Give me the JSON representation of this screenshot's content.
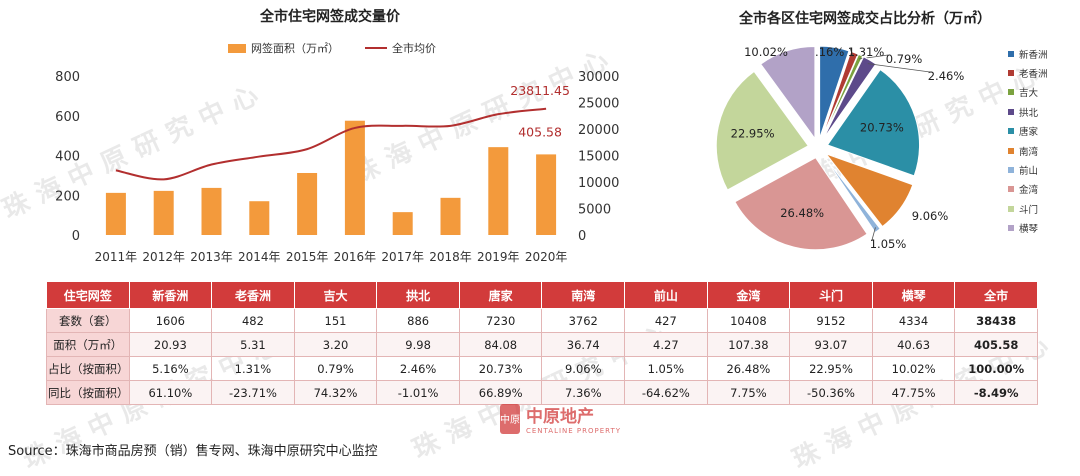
{
  "watermark": "珠海中原研究中心",
  "chart_data": [
    {
      "type": "bar",
      "title": "全市住宅网签成交量价",
      "categories": [
        "2011年",
        "2012年",
        "2013年",
        "2014年",
        "2015年",
        "2016年",
        "2017年",
        "2018年",
        "2019年",
        "2020年"
      ],
      "series": [
        {
          "name": "网签面积（万㎡）",
          "type": "bar",
          "axis": "left",
          "color": "#f39a3c",
          "values": [
            212,
            222,
            237,
            170,
            312,
            575,
            115,
            187,
            442,
            405.58
          ]
        },
        {
          "name": "全市均价",
          "type": "line",
          "axis": "right",
          "color": "#b22f2f",
          "values": [
            12200,
            10500,
            13300,
            14800,
            16200,
            20200,
            20600,
            20600,
            22800,
            23811.45
          ]
        }
      ],
      "y_left": {
        "min": 0,
        "max": 800,
        "ticks": [
          "0",
          "200",
          "400",
          "600",
          "800"
        ]
      },
      "y_right": {
        "min": 0,
        "max": 30000,
        "ticks": [
          "0",
          "5000",
          "10000",
          "15000",
          "20000",
          "25000",
          "30000"
        ]
      },
      "annotations": [
        {
          "series": "全市均价",
          "index": 9,
          "text": "23811.45"
        },
        {
          "series": "网签面积（万㎡）",
          "index": 9,
          "text": "405.58"
        }
      ],
      "legend_position": "top"
    },
    {
      "type": "pie",
      "title": "全市各区住宅网签成交占比分析（万㎡）",
      "slices": [
        {
          "name": "新香洲",
          "value": 5.16,
          "label": "5.16%",
          "color": "#2f6eab"
        },
        {
          "name": "老香洲",
          "value": 1.31,
          "label": "1.31%",
          "color": "#b03b33"
        },
        {
          "name": "吉大",
          "value": 0.79,
          "label": "0.79%",
          "color": "#7ba23f"
        },
        {
          "name": "拱北",
          "value": 2.46,
          "label": "2.46%",
          "color": "#5d4a8a"
        },
        {
          "name": "唐家",
          "value": 20.73,
          "label": "20.73%",
          "color": "#2b8fa6"
        },
        {
          "name": "南湾",
          "value": 9.06,
          "label": "9.06%",
          "color": "#e08330"
        },
        {
          "name": "前山",
          "value": 1.05,
          "label": "1.05%",
          "color": "#8fb3da"
        },
        {
          "name": "金湾",
          "value": 26.48,
          "label": "26.48%",
          "color": "#d99694"
        },
        {
          "name": "斗门",
          "value": 22.95,
          "label": "22.95%",
          "color": "#c3d69b"
        },
        {
          "name": "横琴",
          "value": 10.02,
          "label": "10.02%",
          "color": "#b2a2c7"
        }
      ],
      "legend_position": "right"
    },
    {
      "type": "table",
      "headers": [
        "住宅网签",
        "新香洲",
        "老香洲",
        "吉大",
        "拱北",
        "唐家",
        "南湾",
        "前山",
        "金湾",
        "斗门",
        "横琴",
        "全市"
      ],
      "rows": [
        [
          "套数（套）",
          "1606",
          "482",
          "151",
          "886",
          "7230",
          "3762",
          "427",
          "10408",
          "9152",
          "4334",
          "38438"
        ],
        [
          "面积（万㎡）",
          "20.93",
          "5.31",
          "3.20",
          "9.98",
          "84.08",
          "36.74",
          "4.27",
          "107.38",
          "93.07",
          "40.63",
          "405.58"
        ],
        [
          "占比（按面积）",
          "5.16%",
          "1.31%",
          "0.79%",
          "2.46%",
          "20.73%",
          "9.06%",
          "1.05%",
          "26.48%",
          "22.95%",
          "10.02%",
          "100.00%"
        ],
        [
          "同比（按面积）",
          "61.10%",
          "-23.71%",
          "74.32%",
          "-1.01%",
          "66.89%",
          "7.36%",
          "-64.62%",
          "7.75%",
          "-50.36%",
          "47.75%",
          "-8.49%"
        ]
      ]
    }
  ],
  "logo": {
    "name": "中原地产",
    "sub": "CENTALINE PROPERTY",
    "badge": "中原"
  },
  "source": "Source：珠海市商品房预（销）售专网、珠海中原研究中心监控"
}
